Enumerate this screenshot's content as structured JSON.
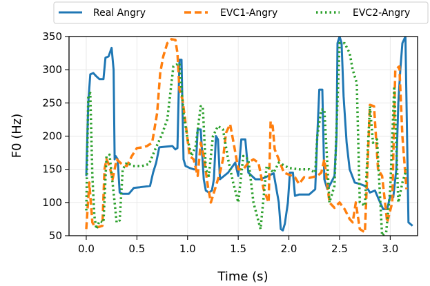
{
  "chart_data": {
    "type": "line",
    "xlabel": "Time (s)",
    "ylabel": "F0 (Hz)",
    "xlim": [
      -0.17,
      3.27
    ],
    "ylim": [
      50,
      350
    ],
    "xticks": [
      0.0,
      0.5,
      1.0,
      1.5,
      2.0,
      2.5,
      3.0
    ],
    "xtick_labels": [
      "0.0",
      "0.5",
      "1.0",
      "1.5",
      "2.0",
      "2.5",
      "3.0"
    ],
    "yticks": [
      50,
      100,
      150,
      200,
      250,
      300,
      350
    ],
    "ytick_labels": [
      "50",
      "100",
      "150",
      "200",
      "250",
      "300",
      "350"
    ],
    "grid": true,
    "legend": {
      "placement": "top, outside plot"
    },
    "series": [
      {
        "name": "Real Angry",
        "color": "#1f77b4",
        "style": "solid",
        "points": [
          [
            0.0,
            140
          ],
          [
            0.02,
            250
          ],
          [
            0.04,
            293
          ],
          [
            0.07,
            295
          ],
          [
            0.1,
            290
          ],
          [
            0.13,
            286
          ],
          [
            0.17,
            286
          ],
          [
            0.19,
            318
          ],
          [
            0.22,
            320
          ],
          [
            0.25,
            333
          ],
          [
            0.27,
            300
          ],
          [
            0.28,
            165
          ],
          [
            0.29,
            170
          ],
          [
            0.31,
            165
          ],
          [
            0.33,
            115
          ],
          [
            0.36,
            113
          ],
          [
            0.42,
            113
          ],
          [
            0.47,
            122
          ],
          [
            0.53,
            123
          ],
          [
            0.63,
            125
          ],
          [
            0.66,
            145
          ],
          [
            0.69,
            160
          ],
          [
            0.72,
            183
          ],
          [
            0.78,
            184
          ],
          [
            0.85,
            185
          ],
          [
            0.88,
            180
          ],
          [
            0.9,
            182
          ],
          [
            0.92,
            315
          ],
          [
            0.94,
            315
          ],
          [
            0.96,
            165
          ],
          [
            0.98,
            155
          ],
          [
            1.02,
            152
          ],
          [
            1.06,
            150
          ],
          [
            1.08,
            150
          ],
          [
            1.1,
            210
          ],
          [
            1.13,
            210
          ],
          [
            1.16,
            135
          ],
          [
            1.18,
            118
          ],
          [
            1.21,
            115
          ],
          [
            1.24,
            118
          ],
          [
            1.26,
            135
          ],
          [
            1.28,
            200
          ],
          [
            1.3,
            195
          ],
          [
            1.32,
            135
          ],
          [
            1.4,
            145
          ],
          [
            1.47,
            160
          ],
          [
            1.5,
            140
          ],
          [
            1.53,
            195
          ],
          [
            1.57,
            195
          ],
          [
            1.6,
            145
          ],
          [
            1.67,
            135
          ],
          [
            1.72,
            135
          ],
          [
            1.77,
            138
          ],
          [
            1.85,
            144
          ],
          [
            1.9,
            100
          ],
          [
            1.92,
            60
          ],
          [
            1.94,
            58
          ],
          [
            1.96,
            68
          ],
          [
            1.99,
            100
          ],
          [
            2.01,
            145
          ],
          [
            2.04,
            145
          ],
          [
            2.06,
            110
          ],
          [
            2.1,
            112
          ],
          [
            2.2,
            112
          ],
          [
            2.26,
            120
          ],
          [
            2.28,
            200
          ],
          [
            2.3,
            270
          ],
          [
            2.33,
            270
          ],
          [
            2.35,
            135
          ],
          [
            2.38,
            120
          ],
          [
            2.41,
            128
          ],
          [
            2.45,
            140
          ],
          [
            2.47,
            200
          ],
          [
            2.48,
            340
          ],
          [
            2.5,
            350
          ],
          [
            2.52,
            340
          ],
          [
            2.54,
            260
          ],
          [
            2.57,
            190
          ],
          [
            2.6,
            150
          ],
          [
            2.65,
            130
          ],
          [
            2.7,
            128
          ],
          [
            2.75,
            125
          ],
          [
            2.78,
            120
          ],
          [
            2.8,
            115
          ],
          [
            2.85,
            118
          ],
          [
            2.9,
            100
          ],
          [
            2.93,
            90
          ],
          [
            2.97,
            90
          ],
          [
            3.0,
            110
          ],
          [
            3.03,
            108
          ],
          [
            3.06,
            150
          ],
          [
            3.08,
            250
          ],
          [
            3.1,
            300
          ],
          [
            3.12,
            340
          ],
          [
            3.15,
            350
          ],
          [
            3.18,
            70
          ],
          [
            3.22,
            65
          ]
        ]
      },
      {
        "name": "EVC1-Angry",
        "color": "#ff7f0e",
        "style": "dashed",
        "points": [
          [
            0.0,
            60
          ],
          [
            0.03,
            130
          ],
          [
            0.06,
            70
          ],
          [
            0.08,
            65
          ],
          [
            0.12,
            63
          ],
          [
            0.16,
            65
          ],
          [
            0.18,
            150
          ],
          [
            0.2,
            165
          ],
          [
            0.23,
            155
          ],
          [
            0.26,
            135
          ],
          [
            0.3,
            165
          ],
          [
            0.35,
            158
          ],
          [
            0.4,
            155
          ],
          [
            0.45,
            170
          ],
          [
            0.5,
            182
          ],
          [
            0.55,
            183
          ],
          [
            0.6,
            185
          ],
          [
            0.65,
            190
          ],
          [
            0.7,
            235
          ],
          [
            0.73,
            295
          ],
          [
            0.76,
            320
          ],
          [
            0.8,
            340
          ],
          [
            0.84,
            346
          ],
          [
            0.88,
            345
          ],
          [
            0.9,
            325
          ],
          [
            0.92,
            270
          ],
          [
            0.95,
            255
          ],
          [
            0.98,
            220
          ],
          [
            1.02,
            170
          ],
          [
            1.06,
            165
          ],
          [
            1.1,
            140
          ],
          [
            1.13,
            190
          ],
          [
            1.16,
            170
          ],
          [
            1.2,
            125
          ],
          [
            1.23,
            100
          ],
          [
            1.28,
            125
          ],
          [
            1.32,
            145
          ],
          [
            1.35,
            165
          ],
          [
            1.38,
            205
          ],
          [
            1.42,
            218
          ],
          [
            1.46,
            185
          ],
          [
            1.5,
            150
          ],
          [
            1.55,
            150
          ],
          [
            1.6,
            160
          ],
          [
            1.65,
            165
          ],
          [
            1.7,
            160
          ],
          [
            1.75,
            120
          ],
          [
            1.8,
            100
          ],
          [
            1.82,
            222
          ],
          [
            1.84,
            215
          ],
          [
            1.86,
            180
          ],
          [
            1.9,
            165
          ],
          [
            1.95,
            145
          ],
          [
            2.0,
            142
          ],
          [
            2.06,
            138
          ],
          [
            2.1,
            128
          ],
          [
            2.15,
            138
          ],
          [
            2.2,
            137
          ],
          [
            2.28,
            140
          ],
          [
            2.32,
            145
          ],
          [
            2.35,
            165
          ],
          [
            2.4,
            100
          ],
          [
            2.45,
            92
          ],
          [
            2.5,
            100
          ],
          [
            2.55,
            90
          ],
          [
            2.6,
            75
          ],
          [
            2.63,
            70
          ],
          [
            2.66,
            100
          ],
          [
            2.7,
            60
          ],
          [
            2.75,
            55
          ],
          [
            2.8,
            247
          ],
          [
            2.84,
            245
          ],
          [
            2.88,
            150
          ],
          [
            2.92,
            140
          ],
          [
            2.97,
            70
          ],
          [
            3.02,
            100
          ],
          [
            3.05,
            300
          ],
          [
            3.09,
            305
          ],
          [
            3.12,
            200
          ],
          [
            3.16,
            120
          ]
        ]
      },
      {
        "name": "EVC2-Angry",
        "color": "#2ca02c",
        "style": "dotted",
        "points": [
          [
            0.0,
            88
          ],
          [
            0.02,
            260
          ],
          [
            0.04,
            265
          ],
          [
            0.06,
            140
          ],
          [
            0.08,
            80
          ],
          [
            0.1,
            60
          ],
          [
            0.13,
            72
          ],
          [
            0.17,
            70
          ],
          [
            0.2,
            170
          ],
          [
            0.23,
            172
          ],
          [
            0.27,
            115
          ],
          [
            0.3,
            70
          ],
          [
            0.33,
            73
          ],
          [
            0.36,
            150
          ],
          [
            0.4,
            160
          ],
          [
            0.46,
            155
          ],
          [
            0.55,
            155
          ],
          [
            0.62,
            158
          ],
          [
            0.68,
            180
          ],
          [
            0.74,
            200
          ],
          [
            0.8,
            225
          ],
          [
            0.86,
            305
          ],
          [
            0.92,
            310
          ],
          [
            0.96,
            235
          ],
          [
            1.0,
            195
          ],
          [
            1.04,
            170
          ],
          [
            1.08,
            185
          ],
          [
            1.13,
            245
          ],
          [
            1.15,
            245
          ],
          [
            1.18,
            150
          ],
          [
            1.21,
            140
          ],
          [
            1.25,
            200
          ],
          [
            1.3,
            215
          ],
          [
            1.35,
            210
          ],
          [
            1.4,
            165
          ],
          [
            1.45,
            130
          ],
          [
            1.5,
            100
          ],
          [
            1.55,
            170
          ],
          [
            1.6,
            165
          ],
          [
            1.65,
            100
          ],
          [
            1.72,
            60
          ],
          [
            1.78,
            155
          ],
          [
            1.85,
            145
          ],
          [
            1.9,
            160
          ],
          [
            2.0,
            152
          ],
          [
            2.1,
            150
          ],
          [
            2.2,
            150
          ],
          [
            2.26,
            145
          ],
          [
            2.28,
            200
          ],
          [
            2.32,
            240
          ],
          [
            2.35,
            240
          ],
          [
            2.4,
            100
          ],
          [
            2.45,
            125
          ],
          [
            2.5,
            340
          ],
          [
            2.55,
            340
          ],
          [
            2.6,
            325
          ],
          [
            2.63,
            300
          ],
          [
            2.67,
            280
          ],
          [
            2.7,
            100
          ],
          [
            2.75,
            95
          ],
          [
            2.8,
            245
          ],
          [
            2.83,
            190
          ],
          [
            2.87,
            195
          ],
          [
            2.92,
            50
          ],
          [
            2.96,
            55
          ],
          [
            3.0,
            120
          ],
          [
            3.04,
            275
          ],
          [
            3.08,
            100
          ],
          [
            3.12,
            130
          ],
          [
            3.16,
            150
          ]
        ]
      }
    ]
  }
}
